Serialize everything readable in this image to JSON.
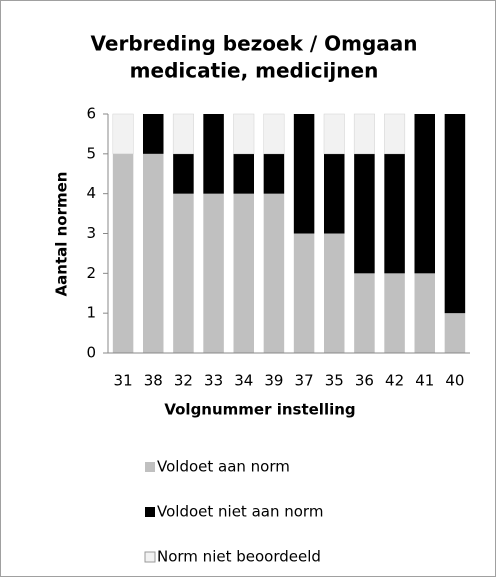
{
  "chart_data": {
    "type": "stacked_bar",
    "title": [
      "Verbreding bezoek / Omgaan",
      "medicatie, medicijnen"
    ],
    "x_label": "Volgnummer  instelling",
    "y_label": "Aantal normen",
    "categories": [
      "31",
      "38",
      "32",
      "33",
      "34",
      "39",
      "37",
      "35",
      "36",
      "42",
      "41",
      "40"
    ],
    "series": [
      {
        "name": "Voldoet aan norm",
        "color": "#c0c0c0",
        "values": [
          5,
          5,
          4,
          4,
          4,
          4,
          3,
          3,
          2,
          2,
          2,
          1
        ]
      },
      {
        "name": "Voldoet niet aan norm",
        "color": "#000000",
        "values": [
          0,
          1,
          1,
          2,
          1,
          1,
          3,
          2,
          3,
          3,
          4,
          5
        ]
      },
      {
        "name": "Norm niet beoordeeld",
        "color": "#f2f2f2",
        "values": [
          1,
          0,
          1,
          0,
          1,
          1,
          0,
          1,
          1,
          1,
          0,
          0
        ]
      }
    ],
    "ylim": [
      0,
      6
    ],
    "yticks": [
      0,
      1,
      2,
      3,
      4,
      5,
      6
    ],
    "grid": false,
    "legend": "bottom"
  }
}
